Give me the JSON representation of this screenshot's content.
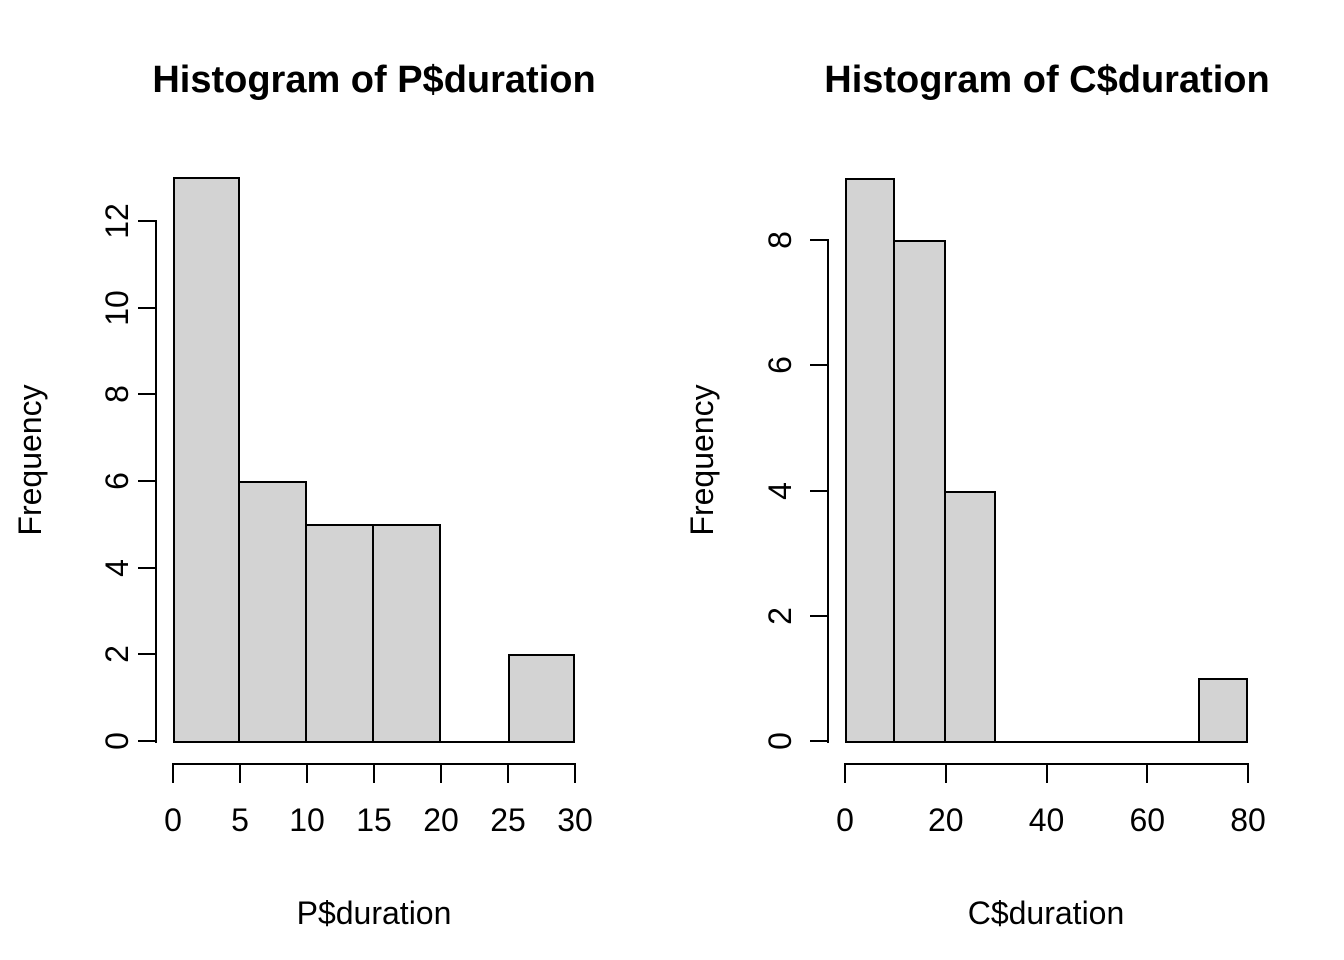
{
  "background": "#ffffff",
  "chart_data": [
    {
      "type": "bar",
      "chart_style": "R-base-histogram",
      "title": "Histogram of P$duration",
      "xlabel": "P$duration",
      "ylabel": "Frequency",
      "bin_breaks": [
        0,
        5,
        10,
        15,
        20,
        25,
        30
      ],
      "counts": [
        13,
        6,
        5,
        5,
        0,
        2
      ],
      "x_ticks": [
        0,
        5,
        10,
        15,
        20,
        25,
        30
      ],
      "y_ticks": [
        0,
        2,
        4,
        6,
        8,
        10,
        12
      ],
      "xlim": [
        0,
        30
      ],
      "ylim": [
        0,
        13
      ],
      "bar_fill": "#d3d3d3",
      "bar_border": "#000000",
      "axis_color": "#000000",
      "grid": false,
      "legend": false
    },
    {
      "type": "bar",
      "chart_style": "R-base-histogram",
      "title": "Histogram of C$duration",
      "xlabel": "C$duration",
      "ylabel": "Frequency",
      "bin_breaks": [
        0,
        10,
        20,
        30,
        40,
        50,
        60,
        70,
        80
      ],
      "counts": [
        9,
        8,
        4,
        0,
        0,
        0,
        0,
        1
      ],
      "x_ticks": [
        0,
        20,
        40,
        60,
        80
      ],
      "y_ticks": [
        0,
        2,
        4,
        6,
        8
      ],
      "xlim": [
        0,
        80
      ],
      "ylim": [
        0,
        9
      ],
      "bar_fill": "#d3d3d3",
      "bar_border": "#000000",
      "axis_color": "#000000",
      "grid": false,
      "legend": false
    }
  ]
}
